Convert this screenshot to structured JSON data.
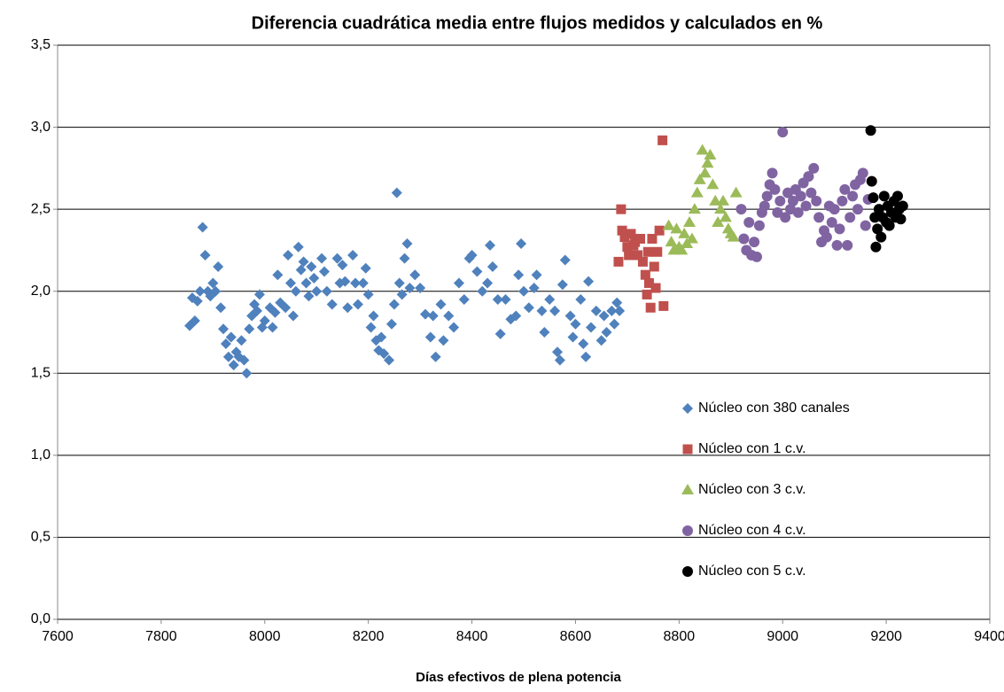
{
  "chart_data": {
    "type": "scatter",
    "title": "Diferencia cuadrática media entre flujos medidos y calculados en %",
    "x_label": "Días efectivos de plena potencia",
    "xlim": [
      7600,
      9400
    ],
    "xticks": [
      7600,
      7800,
      8000,
      8200,
      8400,
      8600,
      8800,
      9000,
      9200,
      9400
    ],
    "ylim": [
      0,
      3.5
    ],
    "yticks": [
      {
        "value": 0,
        "label": "0,0"
      },
      {
        "value": 0.5,
        "label": "0,5"
      },
      {
        "value": 1,
        "label": "1,0"
      },
      {
        "value": 1.5,
        "label": "1,5"
      },
      {
        "value": 2,
        "label": "2,0"
      },
      {
        "value": 2.5,
        "label": "2,5"
      },
      {
        "value": 3,
        "label": "3,0"
      },
      {
        "value": 3.5,
        "label": "3,5"
      }
    ],
    "grid": true,
    "legend": "right",
    "series": [
      {
        "name": "Núcleo con 380 canales",
        "color": "#4f81bd",
        "marker": "diamond",
        "x": [
          7855,
          7860,
          7865,
          7870,
          7875,
          7880,
          7885,
          7890,
          7895,
          7900,
          7905,
          7910,
          7915,
          7920,
          7925,
          7930,
          7935,
          7940,
          7945,
          7950,
          7955,
          7960,
          7965,
          7970,
          7975,
          7980,
          7985,
          7990,
          7995,
          8000,
          8010,
          8015,
          8020,
          8025,
          8030,
          8040,
          8045,
          8050,
          8055,
          8060,
          8065,
          8070,
          8075,
          8080,
          8085,
          8090,
          8095,
          8100,
          8110,
          8115,
          8120,
          8130,
          8140,
          8145,
          8150,
          8155,
          8160,
          8170,
          8175,
          8180,
          8190,
          8195,
          8200,
          8205,
          8210,
          8215,
          8220,
          8225,
          8230,
          8240,
          8245,
          8250,
          8255,
          8260,
          8265,
          8270,
          8275,
          8280,
          8290,
          8300,
          8310,
          8320,
          8325,
          8330,
          8340,
          8345,
          8355,
          8365,
          8375,
          8385,
          8395,
          8400,
          8410,
          8420,
          8430,
          8435,
          8440,
          8450,
          8455,
          8465,
          8475,
          8485,
          8490,
          8495,
          8500,
          8510,
          8520,
          8525,
          8535,
          8540,
          8550,
          8560,
          8565,
          8570,
          8575,
          8580,
          8590,
          8595,
          8600,
          8610,
          8615,
          8620,
          8625,
          8630,
          8640,
          8650,
          8655,
          8660,
          8670,
          8675,
          8680,
          8685
        ],
        "y": [
          1.79,
          1.96,
          1.82,
          1.94,
          2.0,
          2.39,
          2.22,
          2.0,
          1.97,
          2.05,
          2.0,
          2.15,
          1.9,
          1.77,
          1.68,
          1.6,
          1.72,
          1.55,
          1.63,
          1.6,
          1.7,
          1.58,
          1.5,
          1.77,
          1.85,
          1.92,
          1.88,
          1.98,
          1.78,
          1.82,
          1.9,
          1.78,
          1.87,
          2.1,
          1.93,
          1.9,
          2.22,
          2.05,
          1.85,
          2.0,
          2.27,
          2.13,
          2.18,
          2.05,
          1.97,
          2.15,
          2.08,
          2.0,
          2.2,
          2.12,
          2.0,
          1.92,
          2.2,
          2.05,
          2.16,
          2.06,
          1.9,
          2.22,
          2.05,
          1.92,
          2.05,
          2.14,
          1.98,
          1.78,
          1.85,
          1.7,
          1.64,
          1.72,
          1.62,
          1.58,
          1.8,
          1.92,
          2.6,
          2.05,
          1.98,
          2.2,
          2.29,
          2.02,
          2.1,
          2.02,
          1.86,
          1.72,
          1.85,
          1.6,
          1.92,
          1.7,
          1.85,
          1.78,
          2.05,
          1.95,
          2.2,
          2.22,
          2.12,
          2.0,
          2.05,
          2.28,
          2.15,
          1.95,
          1.74,
          1.95,
          1.83,
          1.85,
          2.1,
          2.29,
          2.0,
          1.9,
          2.02,
          2.1,
          1.88,
          1.75,
          1.95,
          1.88,
          1.63,
          1.58,
          2.04,
          2.19,
          1.85,
          1.72,
          1.8,
          1.95,
          1.68,
          1.6,
          2.06,
          1.78,
          1.88,
          1.7,
          1.85,
          1.75,
          1.88,
          1.8,
          1.93,
          1.88
        ]
      },
      {
        "name": "Núcleo con 1 c.v.",
        "color": "#c0504d",
        "marker": "square",
        "x": [
          8683,
          8688,
          8690,
          8695,
          8700,
          8703,
          8707,
          8712,
          8715,
          8720,
          8725,
          8730,
          8735,
          8738,
          8740,
          8742,
          8745,
          8748,
          8752,
          8755,
          8758,
          8762,
          8768,
          8770
        ],
        "y": [
          2.18,
          2.5,
          2.37,
          2.33,
          2.27,
          2.22,
          2.35,
          2.28,
          2.3,
          2.22,
          2.32,
          2.18,
          2.1,
          1.98,
          2.24,
          2.05,
          1.9,
          2.32,
          2.15,
          2.02,
          2.24,
          2.37,
          2.92,
          1.91
        ]
      },
      {
        "name": "Núcleo con 3 c.v.",
        "color": "#9bbb59",
        "marker": "triangle",
        "x": [
          8780,
          8785,
          8790,
          8795,
          8800,
          8805,
          8810,
          8815,
          8820,
          8825,
          8830,
          8835,
          8840,
          8845,
          8850,
          8855,
          8860,
          8865,
          8870,
          8875,
          8880,
          8885,
          8890,
          8895,
          8900,
          8905,
          8910
        ],
        "y": [
          2.4,
          2.3,
          2.25,
          2.38,
          2.27,
          2.25,
          2.35,
          2.29,
          2.42,
          2.32,
          2.5,
          2.6,
          2.68,
          2.86,
          2.72,
          2.78,
          2.83,
          2.65,
          2.55,
          2.42,
          2.5,
          2.55,
          2.45,
          2.38,
          2.35,
          2.33,
          2.6
        ]
      },
      {
        "name": "Núcleo con 4 c.v.",
        "color": "#8064a2",
        "marker": "circle",
        "x": [
          8920,
          8925,
          8930,
          8935,
          8940,
          8945,
          8950,
          8955,
          8960,
          8965,
          8970,
          8975,
          8980,
          8985,
          8990,
          8995,
          9000,
          9005,
          9010,
          9015,
          9020,
          9025,
          9030,
          9035,
          9040,
          9045,
          9050,
          9055,
          9060,
          9065,
          9070,
          9075,
          9080,
          9085,
          9090,
          9095,
          9100,
          9105,
          9110,
          9115,
          9120,
          9125,
          9130,
          9135,
          9140,
          9145,
          9150,
          9155,
          9160,
          9165
        ],
        "y": [
          2.5,
          2.32,
          2.25,
          2.42,
          2.22,
          2.3,
          2.21,
          2.4,
          2.48,
          2.52,
          2.58,
          2.65,
          2.72,
          2.62,
          2.48,
          2.55,
          2.97,
          2.45,
          2.6,
          2.5,
          2.55,
          2.62,
          2.48,
          2.58,
          2.66,
          2.52,
          2.7,
          2.6,
          2.75,
          2.55,
          2.45,
          2.3,
          2.37,
          2.33,
          2.52,
          2.42,
          2.5,
          2.28,
          2.38,
          2.55,
          2.62,
          2.28,
          2.45,
          2.58,
          2.65,
          2.5,
          2.68,
          2.72,
          2.4,
          2.56
        ]
      },
      {
        "name": "Núcleo con 5 c.v.",
        "color": "#000000",
        "marker": "circle",
        "x": [
          9170,
          9172,
          9175,
          9178,
          9180,
          9183,
          9186,
          9190,
          9193,
          9196,
          9200,
          9203,
          9206,
          9210,
          9215,
          9218,
          9222,
          9225,
          9228,
          9232
        ],
        "y": [
          2.98,
          2.67,
          2.57,
          2.45,
          2.27,
          2.38,
          2.5,
          2.33,
          2.45,
          2.58,
          2.42,
          2.52,
          2.4,
          2.48,
          2.55,
          2.45,
          2.58,
          2.5,
          2.44,
          2.52
        ]
      }
    ]
  }
}
